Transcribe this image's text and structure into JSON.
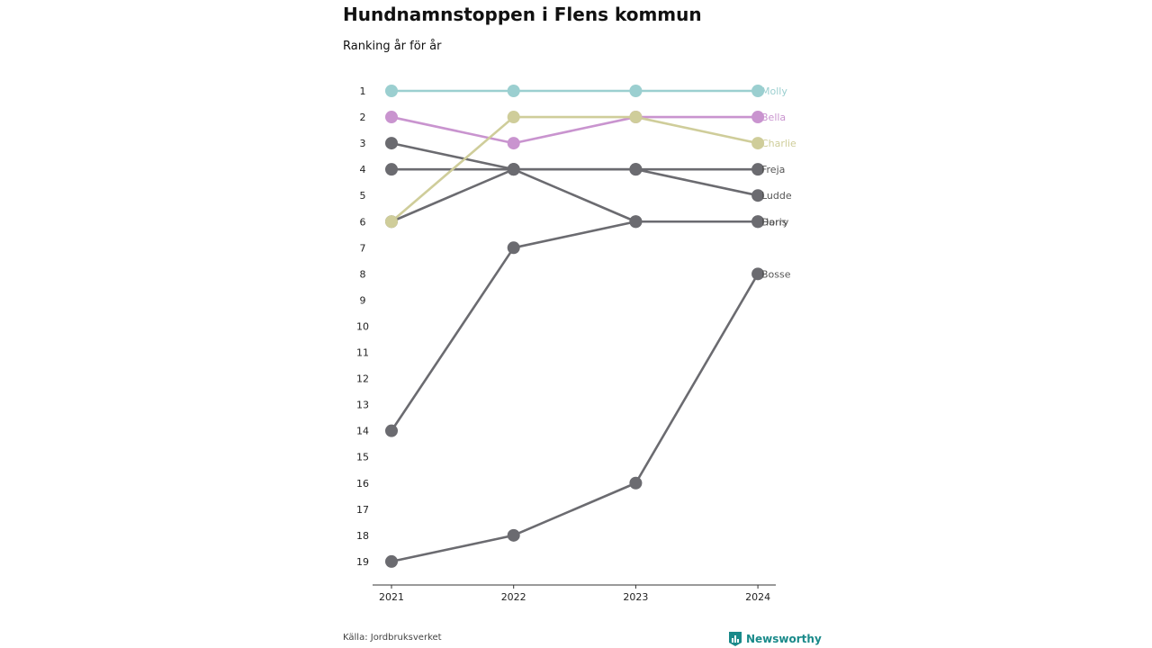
{
  "title": "Hundnamnstoppen i Flens kommun",
  "subtitle": "Ranking år för år",
  "source": "Källa: Jordbruksverket",
  "brand": "Newsworthy",
  "chart_data": {
    "type": "line",
    "x": [
      "2021",
      "2022",
      "2023",
      "2024"
    ],
    "y_ticks": [
      1,
      2,
      3,
      4,
      5,
      6,
      7,
      8,
      9,
      10,
      11,
      12,
      13,
      14,
      15,
      16,
      17,
      18,
      19
    ],
    "y_inverted": true,
    "ylim": [
      1,
      19
    ],
    "grid": false,
    "legend": "labels at line ends",
    "series": [
      {
        "name": "Molly",
        "values": [
          1,
          1,
          1,
          1
        ],
        "color": "#9bcfd0"
      },
      {
        "name": "Bella",
        "values": [
          2,
          3,
          2,
          2
        ],
        "color": "#c994cf"
      },
      {
        "name": "Charlie",
        "values": [
          6,
          2,
          2,
          3
        ],
        "color": "#cfcd9a"
      },
      {
        "name": "Freja",
        "values": [
          4,
          4,
          4,
          4
        ],
        "color": "#6b6b70"
      },
      {
        "name": "Ludde",
        "values": [
          6,
          4,
          4,
          5
        ],
        "color": "#6b6b70"
      },
      {
        "name": "Doris",
        "values": [
          3,
          4,
          6,
          6
        ],
        "color": "#6b6b70"
      },
      {
        "name": "Harry",
        "values": [
          14,
          7,
          6,
          6
        ],
        "color": "#6b6b70"
      },
      {
        "name": "Bosse",
        "values": [
          19,
          18,
          16,
          8
        ],
        "color": "#6b6b70"
      }
    ]
  }
}
